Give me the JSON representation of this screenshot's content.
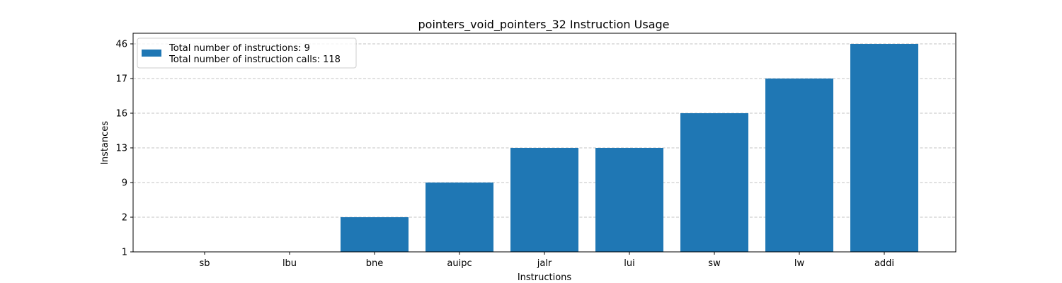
{
  "chart_data": {
    "type": "bar",
    "title": "pointers_void_pointers_32 Instruction Usage",
    "xlabel": "Instructions",
    "ylabel": "Instances",
    "categories": [
      "sb",
      "lbu",
      "bne",
      "auipc",
      "jalr",
      "lui",
      "sw",
      "lw",
      "addi"
    ],
    "values": [
      1,
      1,
      2,
      9,
      13,
      13,
      16,
      17,
      46
    ],
    "y_ticks": [
      "1",
      "2",
      "9",
      "13",
      "16",
      "17",
      "46"
    ],
    "y_scale": "categorical (evenly spaced distinct values)",
    "grid": "horizontal dashed",
    "bar_color": "#1f77b4",
    "legend": {
      "placement": "top-left",
      "lines": [
        "Total number of instructions: 9",
        "Total number of instruction calls: 118"
      ]
    }
  }
}
